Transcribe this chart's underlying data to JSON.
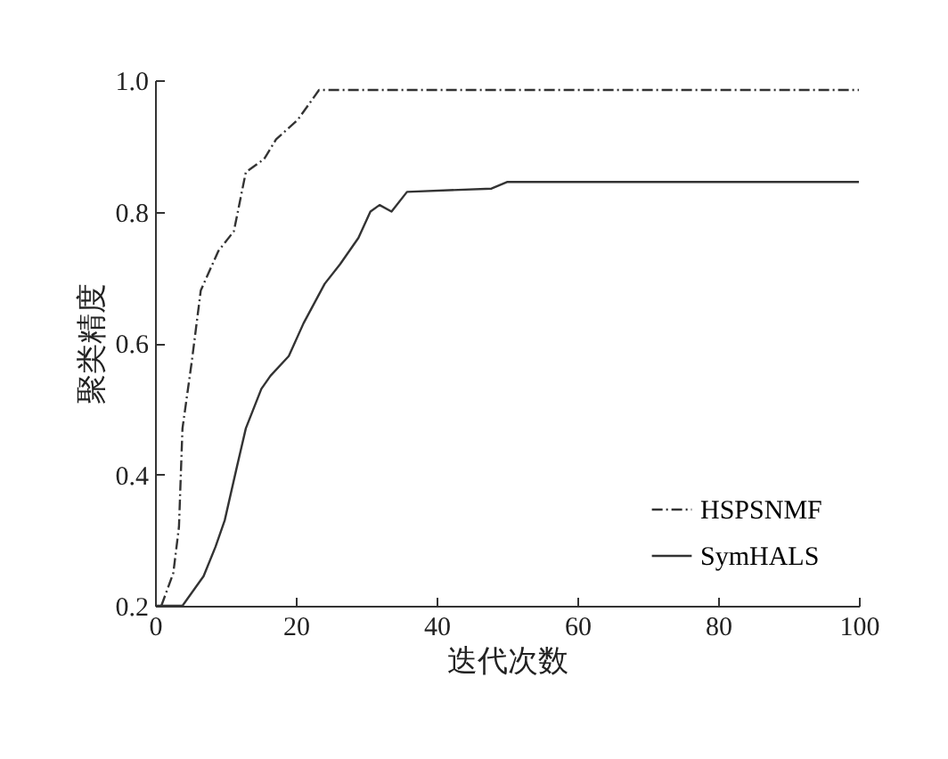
{
  "chart_data": {
    "type": "line",
    "xlabel": "迭代次数",
    "ylabel": "聚类精度",
    "xlim": [
      0,
      100
    ],
    "xticks": [
      0,
      20,
      40,
      60,
      80,
      100
    ],
    "ylim": [
      0.2,
      1.0
    ],
    "yticks": [
      {
        "value": 0.2,
        "label": "0.2"
      },
      {
        "value": 0.4,
        "label": "0.4"
      },
      {
        "value": 0.6,
        "label": "0.6"
      },
      {
        "value": 0.8,
        "label": "0.8"
      },
      {
        "value": 1.0,
        "label": "1.0"
      }
    ],
    "grid": false,
    "legend": "bottom right",
    "marker": "none",
    "series": [
      {
        "name": "HSPSNMF",
        "color": "#333333",
        "line_style": "dashed",
        "x": [
          0.9,
          2.6,
          3.4,
          3.9,
          5.2,
          6.5,
          9,
          11.2,
          12.9,
          15.5,
          17.2,
          20.3,
          23.3,
          100
        ],
        "values": [
          0.2,
          0.25,
          0.32,
          0.47,
          0.57,
          0.68,
          0.74,
          0.77,
          0.86,
          0.88,
          0.91,
          0.94,
          0.985,
          0.985
        ]
      },
      {
        "name": "SymHALS",
        "color": "#333333",
        "line_style": "solid",
        "x": [
          0,
          3.9,
          6.9,
          8.6,
          9.9,
          11.6,
          12.9,
          15.1,
          16.4,
          19,
          21.1,
          24.1,
          26.3,
          28.9,
          30.6,
          31.9,
          33.6,
          35.8,
          47.8,
          50,
          100
        ],
        "values": [
          0.2,
          0.2,
          0.245,
          0.29,
          0.33,
          0.41,
          0.47,
          0.53,
          0.55,
          0.58,
          0.63,
          0.69,
          0.72,
          0.76,
          0.8,
          0.81,
          0.8,
          0.83,
          0.835,
          0.845,
          0.845
        ]
      }
    ]
  }
}
